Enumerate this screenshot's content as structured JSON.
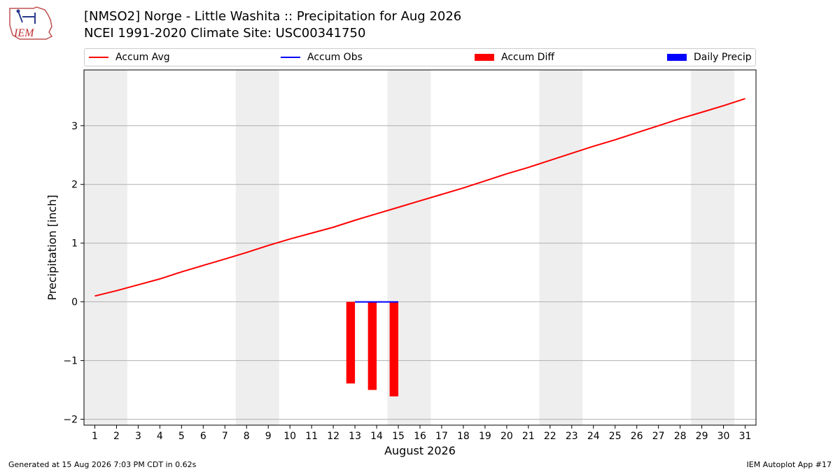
{
  "header": {
    "title_line1": "[NMSO2] Norge - Little Washita :: Precipitation for Aug 2026",
    "title_line2": "NCEI 1991-2020 Climate Site: USC00341750",
    "logo_text": "IEM"
  },
  "legend": {
    "items": [
      {
        "label": "Accum Avg",
        "kind": "line",
        "color": "#ff0000"
      },
      {
        "label": "Accum Obs",
        "kind": "line",
        "color": "#0000ff"
      },
      {
        "label": "Accum Diff",
        "kind": "bar",
        "color": "#ff0000"
      },
      {
        "label": "Daily Precip",
        "kind": "bar",
        "color": "#0000ff"
      }
    ]
  },
  "chart_data": {
    "type": "line",
    "xlabel": "August 2026",
    "ylabel": "Precipitation [inch]",
    "xlim": [
      0.5,
      31.5
    ],
    "ylim": [
      -2.1,
      3.95
    ],
    "x_ticks": [
      1,
      2,
      3,
      4,
      5,
      6,
      7,
      8,
      9,
      10,
      11,
      12,
      13,
      14,
      15,
      16,
      17,
      18,
      19,
      20,
      21,
      22,
      23,
      24,
      25,
      26,
      27,
      28,
      29,
      30,
      31
    ],
    "y_ticks": [
      -2,
      -1,
      0,
      1,
      2,
      3
    ],
    "y_tick_labels": [
      "−2",
      "−1",
      "0",
      "1",
      "2",
      "3"
    ],
    "grid": "y",
    "weekend_shading": [
      [
        0.5,
        2.5
      ],
      [
        7.5,
        9.5
      ],
      [
        14.5,
        16.5
      ],
      [
        21.5,
        23.5
      ],
      [
        28.5,
        30.5
      ]
    ],
    "series": [
      {
        "name": "Accum Avg",
        "type": "line",
        "color": "#ff0000",
        "x": [
          1,
          2,
          3,
          4,
          5,
          6,
          7,
          8,
          9,
          10,
          11,
          12,
          13,
          14,
          15,
          16,
          17,
          18,
          19,
          20,
          21,
          22,
          23,
          24,
          25,
          26,
          27,
          28,
          29,
          30,
          31
        ],
        "values": [
          0.1,
          0.19,
          0.29,
          0.39,
          0.51,
          0.62,
          0.73,
          0.84,
          0.96,
          1.07,
          1.17,
          1.27,
          1.39,
          1.5,
          1.61,
          1.72,
          1.83,
          1.94,
          2.06,
          2.18,
          2.29,
          2.41,
          2.53,
          2.65,
          2.76,
          2.88,
          3.0,
          3.12,
          3.23,
          3.34,
          3.46
        ]
      },
      {
        "name": "Accum Obs",
        "type": "line",
        "color": "#0000ff",
        "x": [
          13,
          14,
          15
        ],
        "values": [
          0.0,
          0.0,
          0.0
        ]
      },
      {
        "name": "Accum Diff",
        "type": "bar",
        "color": "#ff0000",
        "x": [
          13,
          14,
          15
        ],
        "values": [
          -1.39,
          -1.5,
          -1.61
        ]
      },
      {
        "name": "Daily Precip",
        "type": "bar",
        "color": "#0000ff",
        "x": [
          13,
          14,
          15
        ],
        "values": [
          0.0,
          0.0,
          0.0
        ]
      }
    ]
  },
  "footer": {
    "left": "Generated at 15 Aug 2026 7:03 PM CDT in 0.62s",
    "right": "IEM Autoplot App #17"
  }
}
